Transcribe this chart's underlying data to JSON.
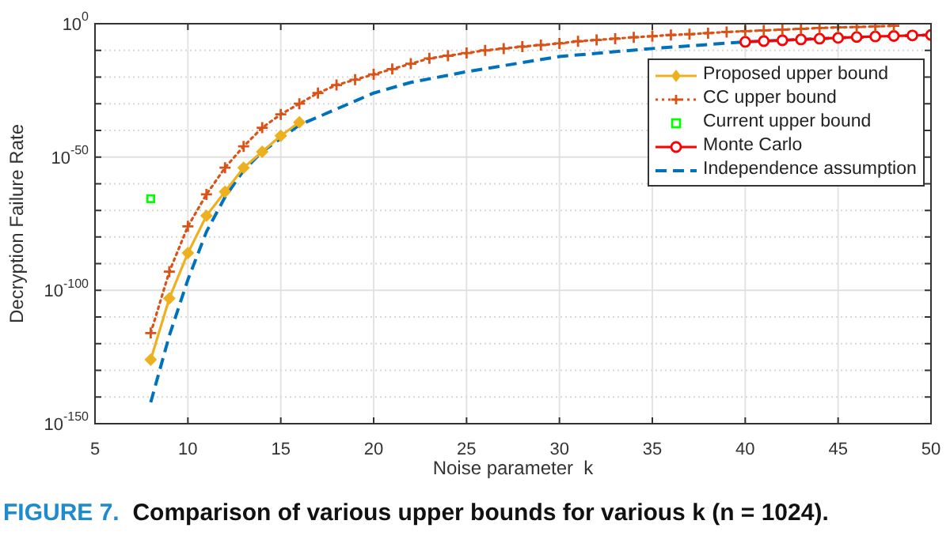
{
  "chart_data": {
    "type": "line",
    "title": "FIGURE 7.  Comparison of various upper bounds for various k (n = 1024).",
    "xlabel": "Noise parameter  k",
    "ylabel": "Decryption Failure Rate",
    "xlim": [
      5,
      50
    ],
    "xticks": [
      5,
      10,
      15,
      20,
      25,
      30,
      35,
      40,
      45,
      50
    ],
    "ylim": [
      1e-150,
      1
    ],
    "log": "y",
    "yticks": [
      {
        "value": 1e-150,
        "label": "10$^{-150}$"
      },
      {
        "value": 1e-140,
        "label": null
      },
      {
        "value": 1e-130,
        "label": null
      },
      {
        "value": 1e-120,
        "label": null
      },
      {
        "value": 1e-110,
        "label": null
      },
      {
        "value": 1e-100,
        "label": "10$^{-100}$"
      },
      {
        "value": 1e-90,
        "label": null
      },
      {
        "value": 1e-80,
        "label": null
      },
      {
        "value": 1e-70,
        "label": null
      },
      {
        "value": 1e-60,
        "label": null
      },
      {
        "value": 1e-50,
        "label": "10$^{-50}$"
      },
      {
        "value": 1e-40,
        "label": null
      },
      {
        "value": 1e-30,
        "label": null
      },
      {
        "value": 1e-20,
        "label": null
      },
      {
        "value": 1e-10,
        "label": null
      },
      {
        "value": 1,
        "label": "10$^{0}$"
      }
    ],
    "grid": true,
    "legend": "top right",
    "series": [
      {
        "name": "Proposed upper bound",
        "color": "#edb120",
        "marker": "diamond",
        "line_style": "solid",
        "x": [
          8,
          9,
          10,
          11,
          12,
          13,
          14,
          15,
          16
        ],
        "values": [
          1e-126,
          1e-103,
          1e-86,
          1e-72,
          1e-63,
          1e-54,
          1e-48,
          1e-42,
          1e-37
        ]
      },
      {
        "name": "CC upper bound",
        "color": "#d95319",
        "marker": "cross",
        "line_style": "dotted",
        "x": [
          8,
          9,
          10,
          11,
          12,
          13,
          14,
          15,
          16,
          17,
          18,
          19,
          20,
          21,
          22,
          23,
          24,
          25,
          26,
          27,
          28,
          29,
          30,
          31,
          32,
          33,
          34,
          35,
          36,
          37,
          38,
          39,
          40,
          41,
          42,
          43,
          44,
          45,
          46,
          47,
          48
        ],
        "values": [
          1e-116,
          1e-93,
          1e-76,
          1e-64,
          1e-54,
          1e-46,
          1e-39,
          1e-34,
          1e-30,
          1e-26,
          1e-23,
          1e-21,
          1e-19,
          1e-17,
          1e-15,
          1e-13,
          1e-12,
          1e-11,
          1e-10,
          5e-10,
          2.5e-09,
          1e-08,
          4e-08,
          2.5e-07,
          8e-07,
          2.5e-06,
          8e-06,
          2e-05,
          6e-05,
          0.00012,
          0.0003,
          0.0008,
          0.0016,
          0.003,
          0.006,
          0.012,
          0.025,
          0.04,
          0.06,
          0.1,
          0.16
        ]
      },
      {
        "name": "Current upper bound",
        "color": "#00ff00",
        "type": "scatter",
        "marker": "square",
        "x": [
          8
        ],
        "values": [
          2.5e-66
        ]
      },
      {
        "name": "Monte Carlo",
        "color": "#ff0000",
        "marker": "circle",
        "line_style": "solid",
        "x": [
          40,
          41,
          42,
          43,
          44,
          45,
          46,
          47,
          48,
          49,
          50
        ],
        "values": [
          1.6e-07,
          3e-07,
          6e-07,
          1.2e-06,
          2.5e-06,
          5e-06,
          1e-05,
          1.6e-05,
          2.5e-05,
          4e-05,
          6e-05
        ]
      },
      {
        "name": "Independence assumption",
        "color": "#0072bd",
        "marker": "none",
        "line_style": "dashed",
        "x": [
          8,
          9,
          10,
          11,
          12,
          13,
          14,
          15,
          16,
          17,
          18,
          19,
          20,
          22,
          25,
          30,
          35,
          40,
          45,
          50
        ],
        "values": [
          1e-142,
          1e-117,
          1e-96,
          1e-78,
          1e-65,
          1e-55,
          1e-48,
          1e-43,
          1e-38,
          1e-35,
          1e-32,
          1e-29,
          1e-26,
          1e-22,
          1e-18,
          5e-13,
          5e-10,
          1.6e-07,
          5e-06,
          6e-05
        ]
      }
    ]
  }
}
